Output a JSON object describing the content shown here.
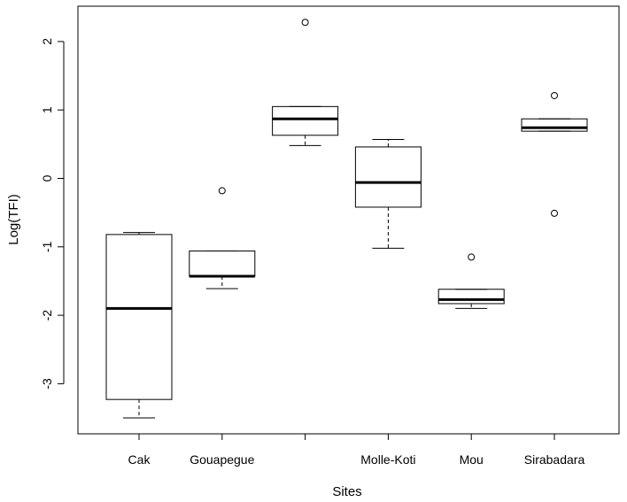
{
  "chart_data": {
    "type": "boxplot",
    "xlabel": "Sites",
    "ylabel": "Log(TFI)",
    "ylim": [
      -3.75,
      2.55
    ],
    "yticks": [
      -3,
      -2,
      -1,
      0,
      1,
      2
    ],
    "ytick_labels": [
      "-3",
      "-2",
      "-1",
      "0",
      "1",
      "2"
    ],
    "grid": false,
    "categories": [
      "Cak",
      "Gouapegue",
      "",
      "Molle-Koti",
      "Mou",
      "Sirabadara"
    ],
    "boxes": [
      {
        "whisker_low": -3.5,
        "q1": -3.23,
        "median": -1.9,
        "q3": -0.82,
        "whisker_high": -0.79,
        "outliers": []
      },
      {
        "whisker_low": -1.61,
        "q1": -1.43,
        "median": -1.43,
        "q3": -1.06,
        "whisker_high": -1.06,
        "outliers": [
          -0.18
        ]
      },
      {
        "whisker_low": 0.48,
        "q1": 0.63,
        "median": 0.87,
        "q3": 1.05,
        "whisker_high": 1.05,
        "outliers": [
          2.28
        ]
      },
      {
        "whisker_low": -1.02,
        "q1": -0.42,
        "median": -0.06,
        "q3": 0.46,
        "whisker_high": 0.57,
        "outliers": []
      },
      {
        "whisker_low": -1.9,
        "q1": -1.83,
        "median": -1.77,
        "q3": -1.62,
        "whisker_high": -1.62,
        "outliers": [
          -1.15
        ]
      },
      {
        "whisker_low": 0.69,
        "q1": 0.69,
        "median": 0.74,
        "q3": 0.87,
        "whisker_high": 0.87,
        "outliers": [
          1.21,
          -0.51
        ]
      }
    ]
  }
}
